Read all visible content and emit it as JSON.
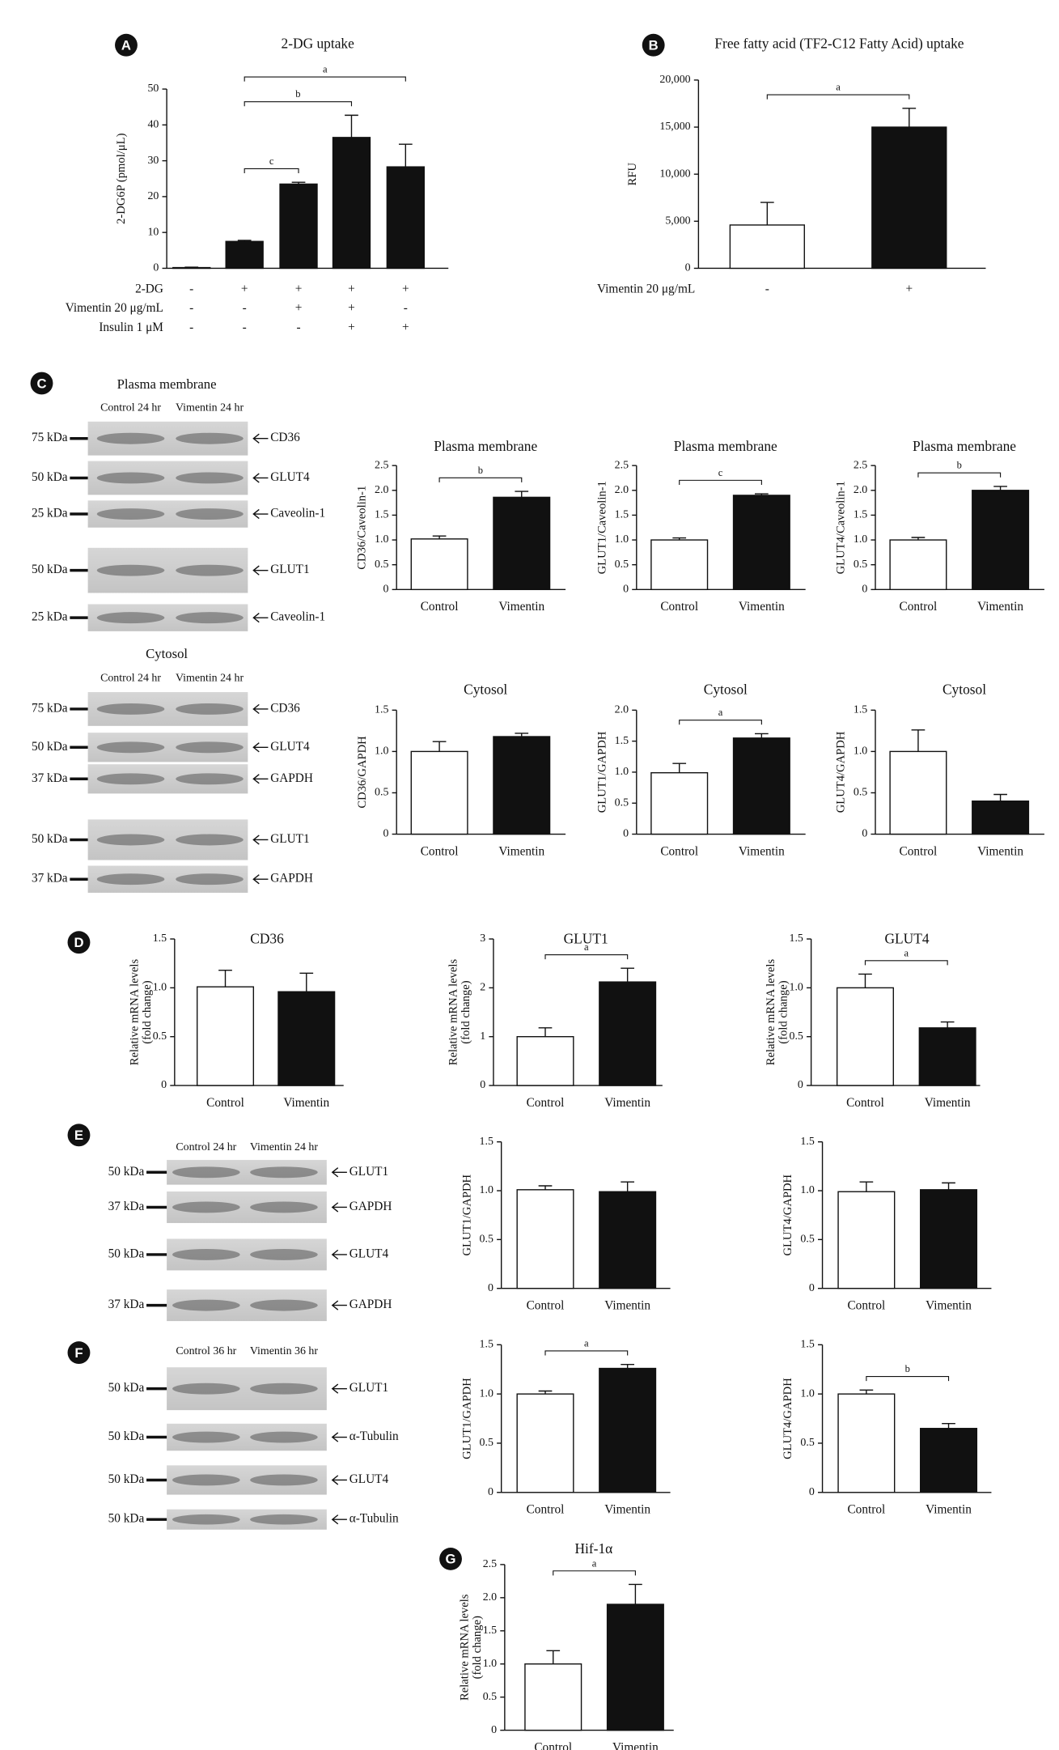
{
  "panel_labels": [
    "A",
    "B",
    "C",
    "D",
    "E",
    "F",
    "G"
  ],
  "blots": [
    {
      "title": "Plasma membrane",
      "lanes": [
        "Control 24 hr",
        "Vimentin 24 hr"
      ],
      "rows": [
        {
          "size": "75 kDa",
          "protein": "CD36"
        },
        {
          "size": "50 kDa",
          "protein": "GLUT4"
        },
        {
          "size": "25 kDa",
          "protein": "Caveolin-1"
        },
        {
          "size": "50 kDa",
          "protein": "GLUT1"
        },
        {
          "size": "25 kDa",
          "protein": "Caveolin-1"
        }
      ]
    },
    {
      "title": "Cytosol",
      "lanes": [
        "Control 24 hr",
        "Vimentin 24 hr"
      ],
      "rows": [
        {
          "size": "75 kDa",
          "protein": "CD36"
        },
        {
          "size": "50 kDa",
          "protein": "GLUT4"
        },
        {
          "size": "37 kDa",
          "protein": "GAPDH"
        },
        {
          "size": "50 kDa",
          "protein": "GLUT1"
        },
        {
          "size": "37 kDa",
          "protein": "GAPDH"
        }
      ]
    },
    {
      "lanes": [
        "Control 24 hr",
        "Vimentin 24 hr"
      ],
      "rows": [
        {
          "size": "50 kDa",
          "protein": "GLUT1"
        },
        {
          "size": "37 kDa",
          "protein": "GAPDH"
        },
        {
          "size": "50 kDa",
          "protein": "GLUT4"
        },
        {
          "size": "37 kDa",
          "protein": "GAPDH"
        }
      ]
    },
    {
      "lanes": [
        "Control 36 hr",
        "Vimentin 36 hr"
      ],
      "rows": [
        {
          "size": "50 kDa",
          "protein": "GLUT1"
        },
        {
          "size": "50 kDa",
          "protein": "α-Tubulin"
        },
        {
          "size": "50 kDa",
          "protein": "GLUT4"
        },
        {
          "size": "50 kDa",
          "protein": "α-Tubulin"
        }
      ]
    }
  ],
  "chart_data": [
    {
      "type": "bar",
      "title": "2-DG uptake",
      "ylabel": [
        "2-DG6P (pmol/μL)"
      ],
      "conditions": [
        {
          "name": "2-DG",
          "values": [
            "-",
            "+",
            "+",
            "+",
            "+"
          ]
        },
        {
          "name": "Vimentin 20 μg/mL",
          "values": [
            "-",
            "-",
            "+",
            "+",
            "-"
          ]
        },
        {
          "name": "Insulin 1 μM",
          "values": [
            "-",
            "-",
            "-",
            "+",
            "+"
          ]
        }
      ],
      "values": [
        0.2,
        7.5,
        23.5,
        36.5,
        28.3
      ],
      "errors": [
        0.1,
        0.3,
        0.5,
        6.2,
        6.3
      ],
      "colors": [
        "#ffffff",
        "#111111",
        "#111111",
        "#111111",
        "#111111"
      ],
      "ylim": [
        0,
        50
      ],
      "yticks": [
        0,
        10,
        20,
        30,
        40,
        50
      ],
      "significance": [
        {
          "label": "c",
          "between": [
            1,
            2
          ]
        },
        {
          "label": "b",
          "between": [
            1,
            3
          ]
        },
        {
          "label": "a",
          "between": [
            1,
            4
          ]
        }
      ]
    },
    {
      "type": "bar",
      "title": "Free fatty acid (TF2-C12 Fatty Acid) uptake",
      "ylabel": [
        "RFU"
      ],
      "conditions": [
        {
          "name": "Vimentin 20 μg/mL",
          "values": [
            "-",
            "+"
          ]
        }
      ],
      "values": [
        4600,
        15000
      ],
      "errors": [
        2400,
        2000
      ],
      "colors": [
        "#ffffff",
        "#111111"
      ],
      "ylim": [
        0,
        20000
      ],
      "yticks": [
        0,
        {
          "value": 5000,
          "label": "5,000"
        },
        {
          "value": 10000,
          "label": "10,000"
        },
        {
          "value": 15000,
          "label": "15,000"
        },
        {
          "value": 20000,
          "label": "20,000"
        }
      ],
      "significance": [
        {
          "label": "a",
          "between": [
            0,
            1
          ]
        }
      ]
    },
    {
      "type": "bar",
      "title": "Plasma membrane",
      "ylabel": [
        "CD36/Caveolin-1"
      ],
      "categories": [
        "Control",
        "Vimentin"
      ],
      "values": [
        1.02,
        1.86
      ],
      "errors": [
        0.06,
        0.12
      ],
      "colors": [
        "#ffffff",
        "#111111"
      ],
      "ylim": [
        0,
        2.5
      ],
      "yticks": [
        0,
        0.5,
        {
          "value": 1,
          "label": "1.0"
        },
        1.5,
        {
          "value": 2,
          "label": "2.0"
        },
        2.5
      ],
      "significance": [
        {
          "label": "b",
          "between": [
            0,
            1
          ]
        }
      ]
    },
    {
      "type": "bar",
      "title": "Plasma membrane",
      "ylabel": [
        "GLUT1/Caveolin-1"
      ],
      "categories": [
        "Control",
        "Vimentin"
      ],
      "values": [
        1.0,
        1.9
      ],
      "errors": [
        0.04,
        0.03
      ],
      "colors": [
        "#ffffff",
        "#111111"
      ],
      "ylim": [
        0,
        2.5
      ],
      "yticks": [
        0,
        0.5,
        {
          "value": 1,
          "label": "1.0"
        },
        1.5,
        {
          "value": 2,
          "label": "2.0"
        },
        2.5
      ],
      "significance": [
        {
          "label": "c",
          "between": [
            0,
            1
          ]
        }
      ]
    },
    {
      "type": "bar",
      "title": "Plasma membrane",
      "ylabel": [
        "GLUT4/Caveolin-1"
      ],
      "categories": [
        "Control",
        "Vimentin"
      ],
      "values": [
        1.0,
        2.0
      ],
      "errors": [
        0.05,
        0.08
      ],
      "colors": [
        "#ffffff",
        "#111111"
      ],
      "ylim": [
        0,
        2.5
      ],
      "yticks": [
        0,
        0.5,
        {
          "value": 1,
          "label": "1.0"
        },
        1.5,
        {
          "value": 2,
          "label": "2.0"
        },
        2.5
      ],
      "significance": [
        {
          "label": "b",
          "between": [
            0,
            1
          ]
        }
      ]
    },
    {
      "type": "bar",
      "title": "Cytosol",
      "ylabel": [
        "CD36/GAPDH"
      ],
      "categories": [
        "Control",
        "Vimentin"
      ],
      "values": [
        1.0,
        1.18
      ],
      "errors": [
        0.12,
        0.04
      ],
      "colors": [
        "#ffffff",
        "#111111"
      ],
      "ylim": [
        0,
        1.5
      ],
      "yticks": [
        0,
        0.5,
        {
          "value": 1,
          "label": "1.0"
        },
        1.5
      ]
    },
    {
      "type": "bar",
      "title": "Cytosol",
      "ylabel": [
        "GLUT1/GAPDH"
      ],
      "categories": [
        "Control",
        "Vimentin"
      ],
      "values": [
        0.99,
        1.55
      ],
      "errors": [
        0.15,
        0.07
      ],
      "colors": [
        "#ffffff",
        "#111111"
      ],
      "ylim": [
        0,
        2
      ],
      "yticks": [
        0,
        0.5,
        {
          "value": 1,
          "label": "1.0"
        },
        1.5,
        {
          "value": 2,
          "label": "2.0"
        }
      ],
      "significance": [
        {
          "label": "a",
          "between": [
            0,
            1
          ]
        }
      ]
    },
    {
      "type": "bar",
      "title": "Cytosol",
      "ylabel": [
        "GLUT4/GAPDH"
      ],
      "categories": [
        "Control",
        "Vimentin"
      ],
      "values": [
        1.0,
        0.4
      ],
      "errors": [
        0.26,
        0.08
      ],
      "colors": [
        "#ffffff",
        "#111111"
      ],
      "ylim": [
        0,
        1.5
      ],
      "yticks": [
        0,
        0.5,
        {
          "value": 1,
          "label": "1.0"
        },
        1.5
      ]
    },
    {
      "type": "bar",
      "title": "CD36",
      "ylabel": [
        "Relative mRNA levels",
        "(fold change)"
      ],
      "categories": [
        "Control",
        "Vimentin"
      ],
      "values": [
        1.01,
        0.96
      ],
      "errors": [
        0.17,
        0.19
      ],
      "colors": [
        "#ffffff",
        "#111111"
      ],
      "ylim": [
        0,
        1.5
      ],
      "yticks": [
        0,
        0.5,
        {
          "value": 1,
          "label": "1.0"
        },
        1.5
      ]
    },
    {
      "type": "bar",
      "title": "GLUT1",
      "ylabel": [
        "Relative mRNA levels",
        "(fold change)"
      ],
      "categories": [
        "Control",
        "Vimentin"
      ],
      "values": [
        1.0,
        2.12
      ],
      "errors": [
        0.18,
        0.28
      ],
      "colors": [
        "#ffffff",
        "#111111"
      ],
      "ylim": [
        0,
        3
      ],
      "yticks": [
        0,
        1,
        2,
        3
      ],
      "significance": [
        {
          "label": "a",
          "between": [
            0,
            1
          ]
        }
      ]
    },
    {
      "type": "bar",
      "title": "GLUT4",
      "ylabel": [
        "Relative mRNA levels",
        "(fold change)"
      ],
      "categories": [
        "Control",
        "Vimentin"
      ],
      "values": [
        1.0,
        0.59
      ],
      "errors": [
        0.14,
        0.06
      ],
      "colors": [
        "#ffffff",
        "#111111"
      ],
      "ylim": [
        0,
        1.5
      ],
      "yticks": [
        0,
        0.5,
        {
          "value": 1,
          "label": "1.0"
        },
        1.5
      ],
      "significance": [
        {
          "label": "a",
          "between": [
            0,
            1
          ]
        }
      ]
    },
    {
      "type": "bar",
      "ylabel": [
        "GLUT1/GAPDH"
      ],
      "categories": [
        "Control",
        "Vimentin"
      ],
      "values": [
        1.01,
        0.99
      ],
      "errors": [
        0.04,
        0.1
      ],
      "colors": [
        "#ffffff",
        "#111111"
      ],
      "ylim": [
        0,
        1.5
      ],
      "yticks": [
        0,
        0.5,
        {
          "value": 1,
          "label": "1.0"
        },
        1.5
      ]
    },
    {
      "type": "bar",
      "ylabel": [
        "GLUT4/GAPDH"
      ],
      "categories": [
        "Control",
        "Vimentin"
      ],
      "values": [
        0.99,
        1.01
      ],
      "errors": [
        0.1,
        0.07
      ],
      "colors": [
        "#ffffff",
        "#111111"
      ],
      "ylim": [
        0,
        1.5
      ],
      "yticks": [
        0,
        0.5,
        {
          "value": 1,
          "label": "1.0"
        },
        1.5
      ]
    },
    {
      "type": "bar",
      "ylabel": [
        "GLUT1/GAPDH"
      ],
      "categories": [
        "Control",
        "Vimentin"
      ],
      "values": [
        1.0,
        1.26
      ],
      "errors": [
        0.03,
        0.04
      ],
      "colors": [
        "#ffffff",
        "#111111"
      ],
      "ylim": [
        0,
        1.5
      ],
      "yticks": [
        0,
        0.5,
        {
          "value": 1,
          "label": "1.0"
        },
        1.5
      ],
      "significance": [
        {
          "label": "a",
          "between": [
            0,
            1
          ]
        }
      ]
    },
    {
      "type": "bar",
      "ylabel": [
        "GLUT4/GAPDH"
      ],
      "categories": [
        "Control",
        "Vimentin"
      ],
      "values": [
        1.0,
        0.65
      ],
      "errors": [
        0.04,
        0.05
      ],
      "colors": [
        "#ffffff",
        "#111111"
      ],
      "ylim": [
        0,
        1.5
      ],
      "yticks": [
        0,
        0.5,
        {
          "value": 1,
          "label": "1.0"
        },
        1.5
      ],
      "significance": [
        {
          "label": "b",
          "between": [
            0,
            1
          ]
        }
      ]
    },
    {
      "type": "bar",
      "title": "Hif-1α",
      "ylabel": [
        "Relative mRNA levels",
        "(fold change)"
      ],
      "categories": [
        "Control",
        "Vimentin"
      ],
      "values": [
        1.0,
        1.9
      ],
      "errors": [
        0.2,
        0.3
      ],
      "colors": [
        "#ffffff",
        "#111111"
      ],
      "ylim": [
        0,
        2.5
      ],
      "yticks": [
        0,
        0.5,
        {
          "value": 1,
          "label": "1.0"
        },
        1.5,
        {
          "value": 2,
          "label": "2.0"
        },
        2.5
      ],
      "significance": [
        {
          "label": "a",
          "between": [
            0,
            1
          ]
        }
      ]
    }
  ]
}
